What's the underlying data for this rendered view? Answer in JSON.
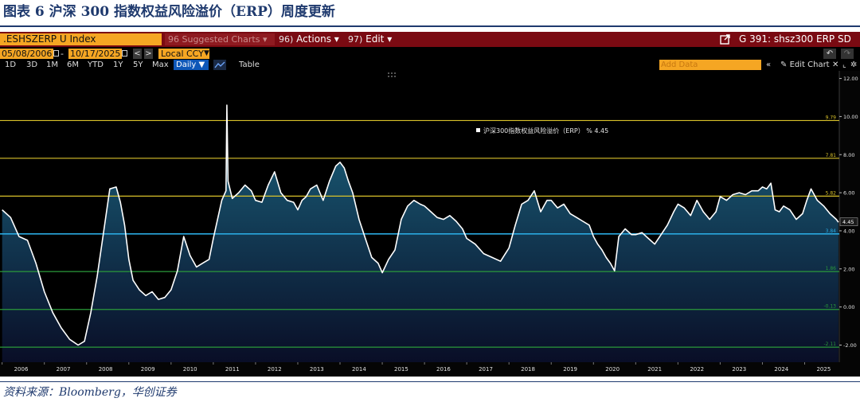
{
  "figure": {
    "title": "图表 6  沪深 300 指数权益风险溢价（ERP）周度更新",
    "source": "资料来源：Bloomberg，华创证券"
  },
  "toolbar": {
    "ticker": ".ESHSZERP U Index",
    "suggested_num": "96",
    "suggested": "Suggested Charts",
    "actions_num": "96)",
    "actions": "Actions",
    "edit_num": "97)",
    "edit": "Edit",
    "graph_title": "G 391: shsz300 ERP SD",
    "start_date": "05/08/2006",
    "end_date": "10/17/2025",
    "dash": "-",
    "prev": "<",
    "next": ">",
    "currency": "Local CCY",
    "timeframes": [
      "1D",
      "3D",
      "1M",
      "6M",
      "YTD",
      "1Y",
      "5Y",
      "Max"
    ],
    "frequency": "Daily",
    "table": "Table",
    "add_data_placeholder": "Add Data",
    "collapse": "«",
    "edit_chart": "Edit Chart"
  },
  "colors": {
    "series_line": "#ffffff",
    "area_top": "#1d6d8a",
    "area_bottom": "#0a0f2a",
    "mean_line": "#2aa9e0",
    "sd1_line": "#d8c12a",
    "sd2_line": "#c0a830",
    "neg_line": "#2a9a3a",
    "brand_bar": "#7a0a12",
    "accent_orange": "#f5a623"
  },
  "chart_data": {
    "type": "area",
    "legend": "沪深300指数权益风险溢价（ERP）  % 4.45",
    "legend_position": "top-center",
    "ylim": [
      -2.9,
      12.4
    ],
    "y_ticks": [
      "12.00",
      "10.00",
      "8.00",
      "6.00",
      "4.00",
      "2.00",
      "0.00",
      "-2.00"
    ],
    "x_ticks": [
      "2006",
      "2007",
      "2008",
      "2009",
      "2010",
      "2011",
      "2012",
      "2013",
      "2014",
      "2015",
      "2016",
      "2017",
      "2018",
      "2019",
      "2020",
      "2021",
      "2022",
      "2023",
      "2024",
      "2025"
    ],
    "reference_lines": [
      {
        "label": "9.79",
        "value": 9.79,
        "kind": "sd"
      },
      {
        "label": "7.81",
        "value": 7.81,
        "kind": "sd"
      },
      {
        "label": "5.82",
        "value": 5.82,
        "kind": "sd"
      },
      {
        "label": "3.84",
        "value": 3.84,
        "kind": "mean"
      },
      {
        "label": "1.86",
        "value": 1.86,
        "kind": "neg"
      },
      {
        "label": "-0.13",
        "value": -0.13,
        "kind": "neg"
      },
      {
        "label": "-2.11",
        "value": -2.11,
        "kind": "neg"
      }
    ],
    "last_value_label": "4.45",
    "last_value": 4.45,
    "series": [
      {
        "name": "沪深300指数权益风险溢价（ERP）",
        "x": [
          2006.0,
          2006.2,
          2006.4,
          2006.6,
          2006.8,
          2007.0,
          2007.2,
          2007.4,
          2007.6,
          2007.8,
          2007.95,
          2008.1,
          2008.25,
          2008.4,
          2008.55,
          2008.7,
          2008.8,
          2008.9,
          2009.0,
          2009.1,
          2009.25,
          2009.4,
          2009.55,
          2009.7,
          2009.85,
          2010.0,
          2010.15,
          2010.3,
          2010.45,
          2010.6,
          2010.75,
          2010.9,
          2011.0,
          2011.1,
          2011.2,
          2011.3,
          2011.32,
          2011.35,
          2011.45,
          2011.6,
          2011.75,
          2011.9,
          2012.0,
          2012.15,
          2012.3,
          2012.45,
          2012.6,
          2012.75,
          2012.9,
          2013.0,
          2013.1,
          2013.2,
          2013.3,
          2013.45,
          2013.6,
          2013.75,
          2013.9,
          2014.0,
          2014.1,
          2014.2,
          2014.3,
          2014.45,
          2014.6,
          2014.75,
          2014.9,
          2015.0,
          2015.15,
          2015.3,
          2015.45,
          2015.6,
          2015.75,
          2015.9,
          2016.0,
          2016.15,
          2016.3,
          2016.45,
          2016.6,
          2016.75,
          2016.9,
          2017.0,
          2017.2,
          2017.4,
          2017.6,
          2017.8,
          2018.0,
          2018.15,
          2018.3,
          2018.45,
          2018.6,
          2018.75,
          2018.9,
          2019.0,
          2019.15,
          2019.3,
          2019.45,
          2019.6,
          2019.75,
          2019.9,
          2020.0,
          2020.1,
          2020.2,
          2020.3,
          2020.4,
          2020.5,
          2020.6,
          2020.75,
          2020.9,
          2021.0,
          2021.15,
          2021.3,
          2021.45,
          2021.6,
          2021.75,
          2021.9,
          2022.0,
          2022.15,
          2022.3,
          2022.45,
          2022.6,
          2022.75,
          2022.9,
          2023.0,
          2023.15,
          2023.3,
          2023.45,
          2023.6,
          2023.75,
          2023.9,
          2024.0,
          2024.1,
          2024.2,
          2024.3,
          2024.4,
          2024.5,
          2024.65,
          2024.8,
          2024.95,
          2025.05,
          2025.15,
          2025.3,
          2025.45,
          2025.6,
          2025.75,
          2025.8
        ],
        "y": [
          5.1,
          4.7,
          3.7,
          3.5,
          2.3,
          0.8,
          -0.3,
          -1.1,
          -1.7,
          -2.0,
          -1.8,
          -0.3,
          1.6,
          3.9,
          6.2,
          6.3,
          5.5,
          4.3,
          2.5,
          1.4,
          0.9,
          0.6,
          0.8,
          0.4,
          0.5,
          0.9,
          1.9,
          3.7,
          2.7,
          2.1,
          2.3,
          2.5,
          3.6,
          4.6,
          5.6,
          6.1,
          10.6,
          6.6,
          5.7,
          6.0,
          6.4,
          6.1,
          5.6,
          5.5,
          6.4,
          7.1,
          6.0,
          5.6,
          5.5,
          5.1,
          5.6,
          5.8,
          6.2,
          6.4,
          5.6,
          6.6,
          7.4,
          7.6,
          7.3,
          6.6,
          6.0,
          4.6,
          3.6,
          2.6,
          2.3,
          1.8,
          2.5,
          3.0,
          4.6,
          5.3,
          5.6,
          5.4,
          5.3,
          5.0,
          4.7,
          4.6,
          4.8,
          4.5,
          4.1,
          3.6,
          3.3,
          2.8,
          2.6,
          2.4,
          3.1,
          4.3,
          5.4,
          5.6,
          6.1,
          5.0,
          5.6,
          5.6,
          5.2,
          5.4,
          4.9,
          4.7,
          4.5,
          4.3,
          3.7,
          3.3,
          3.0,
          2.6,
          2.3,
          1.9,
          3.7,
          4.1,
          3.8,
          3.8,
          3.9,
          3.6,
          3.3,
          3.8,
          4.3,
          5.0,
          5.4,
          5.2,
          4.8,
          5.6,
          5.0,
          4.6,
          5.0,
          5.8,
          5.6,
          5.9,
          6.0,
          5.9,
          6.1,
          6.1,
          6.3,
          6.2,
          6.5,
          5.1,
          5.0,
          5.3,
          5.1,
          4.6,
          4.9,
          5.6,
          6.2,
          5.6,
          5.3,
          4.9,
          4.6,
          4.45
        ]
      }
    ]
  }
}
